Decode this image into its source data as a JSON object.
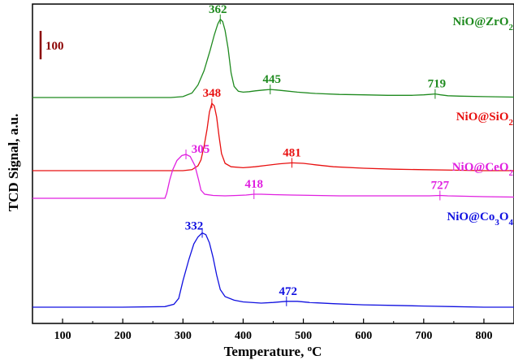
{
  "chart_data": {
    "type": "line",
    "xlabel": "Temperature, °C",
    "ylabel": "TCD Signal, a.u.",
    "xlim": [
      50,
      850
    ],
    "xticks": [
      100,
      200,
      300,
      400,
      500,
      600,
      700,
      800
    ],
    "yticks": false,
    "grid": false,
    "scale_bar": {
      "label": "100",
      "color": "#8b0000",
      "value": 100
    },
    "series": [
      {
        "name": "NiO@ZrO₂",
        "color": "#1f8a1f",
        "baseline": 0,
        "points": [
          [
            50,
            0
          ],
          [
            200,
            0
          ],
          [
            280,
            0
          ],
          [
            300,
            2
          ],
          [
            315,
            10
          ],
          [
            325,
            28
          ],
          [
            335,
            60
          ],
          [
            345,
            105
          ],
          [
            352,
            140
          ],
          [
            358,
            165
          ],
          [
            362,
            175
          ],
          [
            366,
            170
          ],
          [
            370,
            150
          ],
          [
            375,
            110
          ],
          [
            380,
            55
          ],
          [
            385,
            25
          ],
          [
            392,
            14
          ],
          [
            400,
            12
          ],
          [
            410,
            13
          ],
          [
            420,
            15
          ],
          [
            435,
            17
          ],
          [
            445,
            18
          ],
          [
            455,
            17
          ],
          [
            470,
            15
          ],
          [
            490,
            12
          ],
          [
            520,
            9
          ],
          [
            560,
            7
          ],
          [
            600,
            6
          ],
          [
            640,
            5
          ],
          [
            680,
            5
          ],
          [
            700,
            6
          ],
          [
            710,
            7
          ],
          [
            719,
            8
          ],
          [
            728,
            6
          ],
          [
            740,
            4
          ],
          [
            760,
            3
          ],
          [
            800,
            2
          ],
          [
            850,
            1
          ]
        ],
        "peaks": [
          {
            "x": 362,
            "label": "362"
          },
          {
            "x": 445,
            "label": "445"
          },
          {
            "x": 719,
            "label": "719"
          }
        ]
      },
      {
        "name": "NiO@SiO₂",
        "color": "#e81010",
        "baseline": 0,
        "points": [
          [
            50,
            0
          ],
          [
            200,
            0
          ],
          [
            300,
            0
          ],
          [
            315,
            2
          ],
          [
            325,
            10
          ],
          [
            330,
            22
          ],
          [
            335,
            50
          ],
          [
            340,
            85
          ],
          [
            344,
            120
          ],
          [
            348,
            138
          ],
          [
            352,
            133
          ],
          [
            356,
            110
          ],
          [
            360,
            70
          ],
          [
            364,
            35
          ],
          [
            370,
            15
          ],
          [
            380,
            8
          ],
          [
            400,
            6
          ],
          [
            420,
            8
          ],
          [
            440,
            11
          ],
          [
            460,
            14
          ],
          [
            481,
            16
          ],
          [
            500,
            15
          ],
          [
            520,
            12
          ],
          [
            550,
            8
          ],
          [
            600,
            5
          ],
          [
            650,
            3
          ],
          [
            700,
            2
          ],
          [
            750,
            1
          ],
          [
            800,
            0
          ],
          [
            850,
            0
          ]
        ],
        "peaks": [
          {
            "x": 348,
            "label": "348"
          },
          {
            "x": 481,
            "label": "481"
          }
        ]
      },
      {
        "name": "NiO@CeO₂",
        "color": "#e020e0",
        "baseline": 0,
        "points": [
          [
            50,
            0
          ],
          [
            200,
            0
          ],
          [
            270,
            0
          ],
          [
            273,
            12
          ],
          [
            278,
            45
          ],
          [
            283,
            70
          ],
          [
            290,
            93
          ],
          [
            298,
            105
          ],
          [
            305,
            108
          ],
          [
            312,
            103
          ],
          [
            320,
            80
          ],
          [
            326,
            45
          ],
          [
            330,
            20
          ],
          [
            336,
            10
          ],
          [
            350,
            7
          ],
          [
            370,
            6
          ],
          [
            390,
            7
          ],
          [
            405,
            8
          ],
          [
            418,
            10
          ],
          [
            430,
            10
          ],
          [
            450,
            9
          ],
          [
            480,
            8
          ],
          [
            520,
            7
          ],
          [
            560,
            6
          ],
          [
            600,
            6
          ],
          [
            640,
            6
          ],
          [
            680,
            6
          ],
          [
            710,
            6
          ],
          [
            727,
            7
          ],
          [
            740,
            6
          ],
          [
            770,
            5
          ],
          [
            800,
            4
          ],
          [
            850,
            3
          ]
        ],
        "peaks": [
          {
            "x": 305,
            "label": "305"
          },
          {
            "x": 418,
            "label": "418"
          },
          {
            "x": 727,
            "label": "727"
          }
        ]
      },
      {
        "name": "NiO@Co₃O₄",
        "color": "#1010e0",
        "baseline": 0,
        "points": [
          [
            50,
            0
          ],
          [
            200,
            0
          ],
          [
            270,
            1
          ],
          [
            285,
            5
          ],
          [
            293,
            15
          ],
          [
            300,
            45
          ],
          [
            310,
            82
          ],
          [
            318,
            108
          ],
          [
            325,
            120
          ],
          [
            332,
            127
          ],
          [
            338,
            124
          ],
          [
            344,
            110
          ],
          [
            350,
            85
          ],
          [
            356,
            55
          ],
          [
            362,
            30
          ],
          [
            370,
            18
          ],
          [
            385,
            12
          ],
          [
            400,
            9
          ],
          [
            430,
            7
          ],
          [
            450,
            8
          ],
          [
            472,
            10
          ],
          [
            490,
            10
          ],
          [
            510,
            8
          ],
          [
            550,
            6
          ],
          [
            600,
            4
          ],
          [
            650,
            3
          ],
          [
            700,
            2
          ],
          [
            750,
            1
          ],
          [
            800,
            0
          ],
          [
            850,
            0
          ]
        ],
        "peaks": [
          {
            "x": 332,
            "label": "332"
          },
          {
            "x": 472,
            "label": "472"
          }
        ]
      }
    ]
  }
}
